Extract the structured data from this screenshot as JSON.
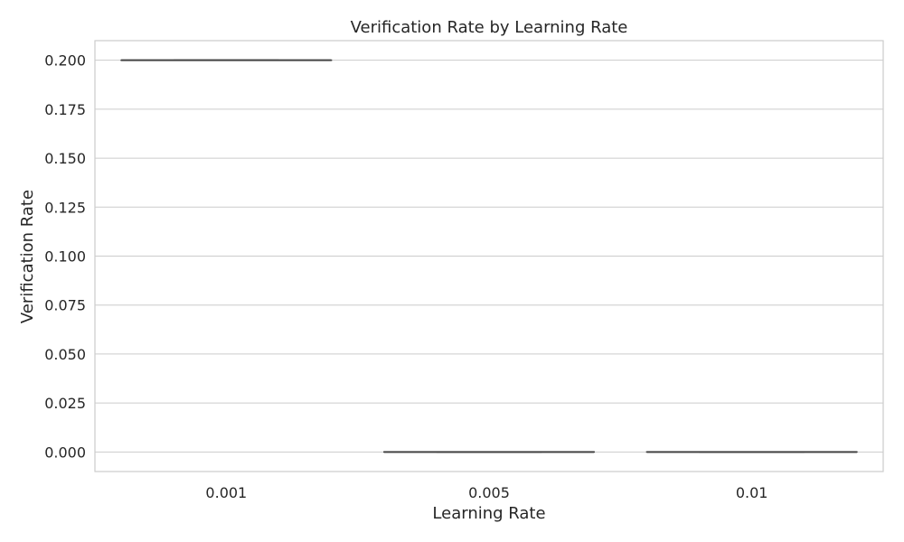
{
  "chart_data": {
    "type": "box",
    "title": "Verification Rate by Learning Rate",
    "xlabel": "Learning Rate",
    "ylabel": "Verification Rate",
    "categories": [
      "0.001",
      "0.005",
      "0.01"
    ],
    "boxes": [
      {
        "category": "0.001",
        "min": 0.2,
        "q1": 0.2,
        "median": 0.2,
        "q3": 0.2,
        "max": 0.2
      },
      {
        "category": "0.005",
        "min": 0.0,
        "q1": 0.0,
        "median": 0.0,
        "q3": 0.0,
        "max": 0.0
      },
      {
        "category": "0.01",
        "min": 0.0,
        "q1": 0.0,
        "median": 0.0,
        "q3": 0.0,
        "max": 0.0
      }
    ],
    "ylim": [
      -0.01,
      0.21
    ],
    "yticks": [
      0.0,
      0.025,
      0.05,
      0.075,
      0.1,
      0.125,
      0.15,
      0.175,
      0.2
    ],
    "ytick_labels": [
      "0.000",
      "0.025",
      "0.050",
      "0.075",
      "0.100",
      "0.125",
      "0.150",
      "0.175",
      "0.200"
    ],
    "grid": "horizontal",
    "colors": {
      "grid": "#cccccc",
      "box_line": "#444444",
      "text": "#262626"
    }
  }
}
